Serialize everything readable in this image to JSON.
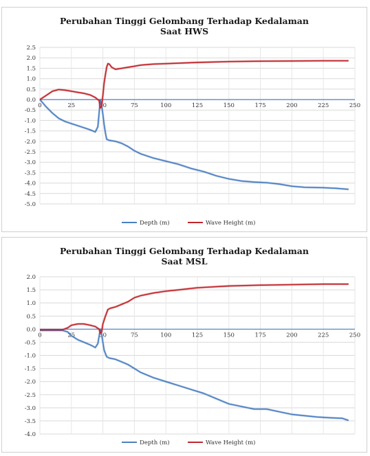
{
  "chart_data": [
    {
      "type": "line",
      "title_line1": "Perubahan Tinggi Gelombang Terhadap  Kedalaman",
      "title_line2": "Saat HWS",
      "xlabel": "",
      "ylabel": "",
      "xlim": [
        0,
        250
      ],
      "ylim": [
        -5.0,
        2.5
      ],
      "x_ticks": [
        "0",
        "25",
        "50",
        "75",
        "100",
        "125",
        "150",
        "175",
        "200",
        "225",
        "250"
      ],
      "y_ticks": [
        "2.5",
        "2.0",
        "1.5",
        "1.0",
        "0.5",
        "0.0",
        "-0.5",
        "-1.0",
        "-1.5",
        "-2.0",
        "-2.5",
        "-3.0",
        "-3.5",
        "-4.0",
        "-4.5",
        "-5.0"
      ],
      "grid": true,
      "legend_position": "bottom",
      "series": [
        {
          "name": "Depth (m)",
          "color": "#4a7fc1",
          "points": [
            [
              0,
              0
            ],
            [
              5,
              -0.35
            ],
            [
              10,
              -0.65
            ],
            [
              15,
              -0.9
            ],
            [
              20,
              -1.05
            ],
            [
              25,
              -1.15
            ],
            [
              30,
              -1.25
            ],
            [
              35,
              -1.35
            ],
            [
              40,
              -1.45
            ],
            [
              44,
              -1.55
            ],
            [
              46,
              -1.3
            ],
            [
              48,
              0.0
            ],
            [
              49,
              -0.3
            ],
            [
              50,
              -0.7
            ],
            [
              51,
              -1.2
            ],
            [
              52,
              -1.6
            ],
            [
              53,
              -1.9
            ],
            [
              55,
              -1.95
            ],
            [
              60,
              -2.0
            ],
            [
              65,
              -2.1
            ],
            [
              70,
              -2.25
            ],
            [
              75,
              -2.45
            ],
            [
              80,
              -2.6
            ],
            [
              90,
              -2.8
            ],
            [
              100,
              -2.95
            ],
            [
              110,
              -3.1
            ],
            [
              120,
              -3.3
            ],
            [
              130,
              -3.45
            ],
            [
              140,
              -3.65
            ],
            [
              150,
              -3.8
            ],
            [
              160,
              -3.9
            ],
            [
              170,
              -3.95
            ],
            [
              180,
              -3.98
            ],
            [
              190,
              -4.05
            ],
            [
              200,
              -4.15
            ],
            [
              210,
              -4.2
            ],
            [
              225,
              -4.22
            ],
            [
              235,
              -4.25
            ],
            [
              245,
              -4.3
            ]
          ]
        },
        {
          "name": "Wave Height (m)",
          "color": "#c0262c",
          "points": [
            [
              0,
              0
            ],
            [
              5,
              0.2
            ],
            [
              10,
              0.4
            ],
            [
              15,
              0.48
            ],
            [
              20,
              0.45
            ],
            [
              25,
              0.4
            ],
            [
              30,
              0.35
            ],
            [
              35,
              0.3
            ],
            [
              40,
              0.22
            ],
            [
              44,
              0.1
            ],
            [
              47,
              -0.05
            ],
            [
              48,
              -0.4
            ],
            [
              49,
              -0.3
            ],
            [
              50,
              0.2
            ],
            [
              51,
              0.8
            ],
            [
              52,
              1.2
            ],
            [
              53,
              1.55
            ],
            [
              54,
              1.72
            ],
            [
              55,
              1.7
            ],
            [
              57,
              1.55
            ],
            [
              60,
              1.45
            ],
            [
              65,
              1.5
            ],
            [
              70,
              1.55
            ],
            [
              75,
              1.6
            ],
            [
              80,
              1.65
            ],
            [
              90,
              1.7
            ],
            [
              100,
              1.72
            ],
            [
              125,
              1.78
            ],
            [
              150,
              1.82
            ],
            [
              175,
              1.84
            ],
            [
              200,
              1.85
            ],
            [
              225,
              1.86
            ],
            [
              245,
              1.86
            ]
          ]
        }
      ]
    },
    {
      "type": "line",
      "title_line1": "Perubahan Tinggi Gelombang Terhadap  Kedalaman",
      "title_line2": "Saat MSL",
      "xlabel": "",
      "ylabel": "",
      "xlim": [
        0,
        250
      ],
      "ylim": [
        -4.0,
        2.0
      ],
      "x_ticks": [
        "0",
        "25",
        "50",
        "75",
        "100",
        "125",
        "150",
        "175",
        "200",
        "225",
        "250"
      ],
      "y_ticks": [
        "2.0",
        "1.5",
        "1.0",
        "0.5",
        "0.0",
        "-0.5",
        "-1.0",
        "-1.5",
        "-2.0",
        "-2.5",
        "-3.0",
        "-3.5",
        "-4.0"
      ],
      "grid": true,
      "legend_position": "bottom",
      "series": [
        {
          "name": "Depth (m)",
          "color": "#4a7fc1",
          "points": [
            [
              0,
              -0.05
            ],
            [
              10,
              -0.05
            ],
            [
              18,
              -0.05
            ],
            [
              22,
              -0.1
            ],
            [
              25,
              -0.25
            ],
            [
              30,
              -0.4
            ],
            [
              35,
              -0.5
            ],
            [
              40,
              -0.6
            ],
            [
              44,
              -0.7
            ],
            [
              46,
              -0.55
            ],
            [
              48,
              0.0
            ],
            [
              49,
              -0.2
            ],
            [
              50,
              -0.5
            ],
            [
              51,
              -0.8
            ],
            [
              53,
              -1.05
            ],
            [
              55,
              -1.1
            ],
            [
              60,
              -1.15
            ],
            [
              65,
              -1.25
            ],
            [
              70,
              -1.35
            ],
            [
              75,
              -1.5
            ],
            [
              80,
              -1.65
            ],
            [
              90,
              -1.85
            ],
            [
              100,
              -2.0
            ],
            [
              110,
              -2.15
            ],
            [
              120,
              -2.3
            ],
            [
              130,
              -2.45
            ],
            [
              140,
              -2.65
            ],
            [
              150,
              -2.85
            ],
            [
              160,
              -2.95
            ],
            [
              170,
              -3.05
            ],
            [
              180,
              -3.05
            ],
            [
              190,
              -3.15
            ],
            [
              200,
              -3.25
            ],
            [
              210,
              -3.3
            ],
            [
              220,
              -3.35
            ],
            [
              230,
              -3.38
            ],
            [
              240,
              -3.4
            ],
            [
              245,
              -3.48
            ]
          ]
        },
        {
          "name": "Wave Height (m)",
          "color": "#c0262c",
          "points": [
            [
              0,
              -0.02
            ],
            [
              10,
              -0.02
            ],
            [
              18,
              -0.02
            ],
            [
              22,
              0.05
            ],
            [
              25,
              0.15
            ],
            [
              30,
              0.2
            ],
            [
              35,
              0.2
            ],
            [
              40,
              0.15
            ],
            [
              44,
              0.1
            ],
            [
              47,
              0.0
            ],
            [
              48,
              -0.15
            ],
            [
              49,
              -0.1
            ],
            [
              50,
              0.2
            ],
            [
              52,
              0.5
            ],
            [
              54,
              0.75
            ],
            [
              56,
              0.8
            ],
            [
              60,
              0.85
            ],
            [
              65,
              0.95
            ],
            [
              70,
              1.05
            ],
            [
              75,
              1.2
            ],
            [
              80,
              1.28
            ],
            [
              90,
              1.38
            ],
            [
              100,
              1.45
            ],
            [
              110,
              1.5
            ],
            [
              125,
              1.58
            ],
            [
              150,
              1.65
            ],
            [
              175,
              1.68
            ],
            [
              200,
              1.7
            ],
            [
              225,
              1.72
            ],
            [
              245,
              1.72
            ]
          ]
        }
      ]
    }
  ]
}
